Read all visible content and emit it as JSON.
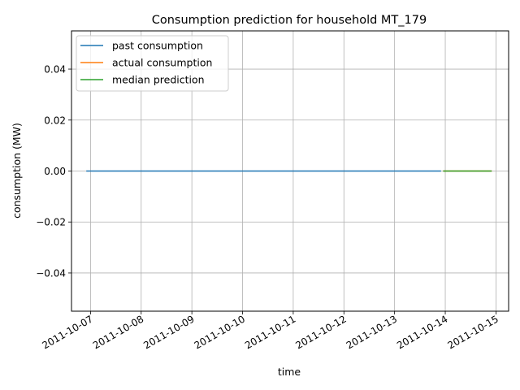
{
  "chart_data": {
    "type": "line",
    "title": "Consumption prediction for household MT_179",
    "xlabel": "time",
    "ylabel": "consumption (MW)",
    "x_ticks": [
      "2011-10-07",
      "2011-10-08",
      "2011-10-09",
      "2011-10-10",
      "2011-10-11",
      "2011-10-12",
      "2011-10-13",
      "2011-10-14",
      "2011-10-15"
    ],
    "y_ticks": [
      -0.04,
      -0.02,
      0.0,
      0.02,
      0.04
    ],
    "y_tick_labels": [
      "−0.04",
      "−0.02",
      "0.00",
      "0.02",
      "0.04"
    ],
    "ylim": [
      -0.055,
      0.055
    ],
    "xlim": [
      "2011-10-06T15:00",
      "2011-10-15T06:00"
    ],
    "grid": true,
    "legend": "top-left",
    "series": [
      {
        "name": "past consumption",
        "color": "#1f77b4",
        "x": [
          "2011-10-06T22:00",
          "2011-10-13T22:00"
        ],
        "y": [
          0,
          0
        ]
      },
      {
        "name": "actual consumption",
        "color": "#ff7f0e",
        "x": [
          "2011-10-13T23:00",
          "2011-10-14T22:00"
        ],
        "y": [
          0,
          0
        ]
      },
      {
        "name": "median prediction",
        "color": "#2ca02c",
        "x": [
          "2011-10-13T23:00",
          "2011-10-14T22:00"
        ],
        "y": [
          0,
          0
        ]
      }
    ]
  }
}
